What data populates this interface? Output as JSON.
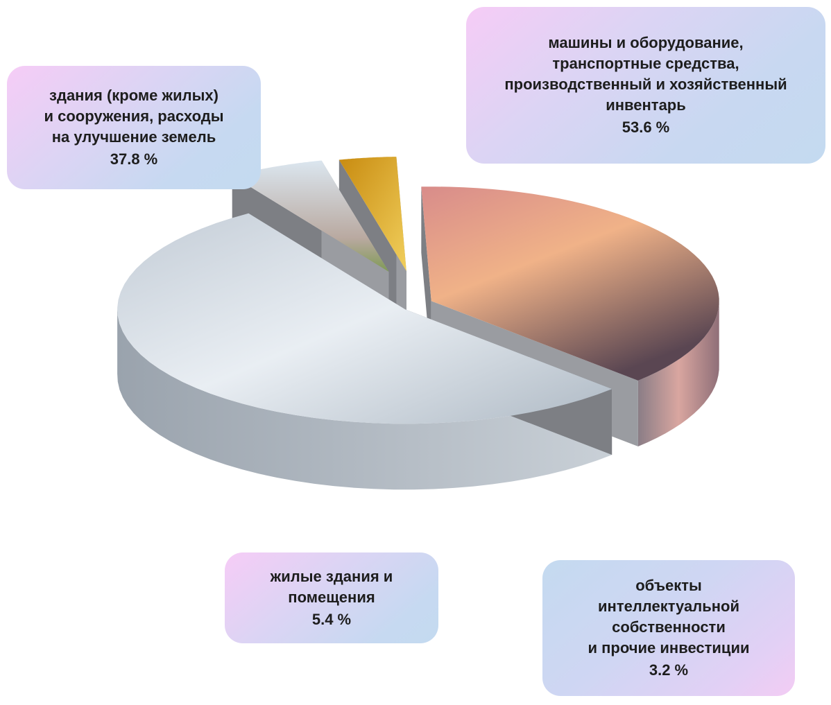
{
  "chart_data": {
    "type": "pie",
    "title": "",
    "slices": [
      {
        "label": "здания (кроме жилых) и сооружения, расходы на улучшение земель",
        "value": 37.8,
        "value_label": "37.8 %",
        "color": "#e7a77f"
      },
      {
        "label": "машины и оборудование, транспортные средства, производственный и хозяйственный инвентарь",
        "value": 53.6,
        "value_label": "53.6 %",
        "color": "#d4dce6"
      },
      {
        "label": "жилые здания и помещения",
        "value": 5.4,
        "value_label": "5.4 %",
        "color": "#b6c4d3"
      },
      {
        "label": "объекты интеллектуальной собственности и прочие инвестиции",
        "value": 3.2,
        "value_label": "3.2 %",
        "color": "#d7a11b"
      }
    ]
  },
  "callouts": [
    {
      "lines": [
        "здания (кроме жилых)",
        "и сооружения, расходы",
        "на улучшение земель"
      ],
      "pct": "37.8 %"
    },
    {
      "lines": [
        "машины и оборудование,",
        "транспортные средства,",
        "производственный и хозяйственный",
        "инвентарь"
      ],
      "pct": "53.6 %"
    },
    {
      "lines": [
        "жилые здания и",
        "помещения"
      ],
      "pct": "5.4 %"
    },
    {
      "lines": [
        "объекты",
        "интеллектуальной",
        "собственности",
        "и прочие  инвестиции"
      ],
      "pct": "3.2 %"
    }
  ]
}
